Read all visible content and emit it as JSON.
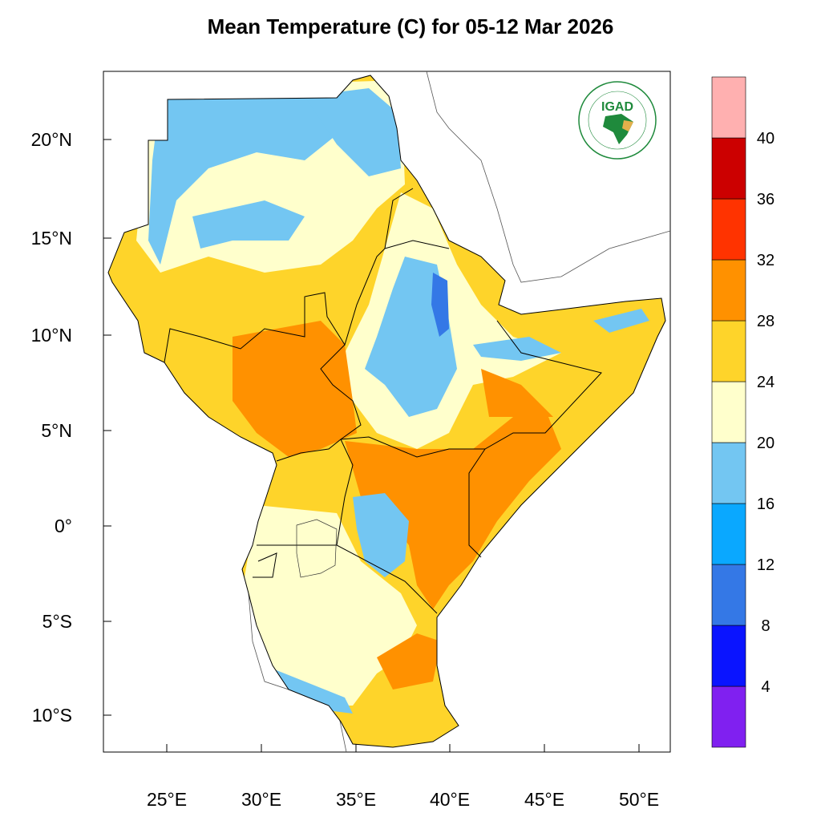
{
  "title": "Mean Temperature (C) for 05-12 Mar 2026",
  "map": {
    "lon_ticks": [
      "25°E",
      "30°E",
      "35°E",
      "40°E",
      "45°E",
      "50°E"
    ],
    "lat_ticks": [
      "20°N",
      "15°N",
      "10°N",
      "5°N",
      "0°",
      "5°S",
      "10°S"
    ],
    "lon_range": [
      21.65,
      51.65
    ],
    "lat_range": [
      -11.8,
      23.55
    ],
    "variable": "Mean Temperature (C)"
  },
  "colorbar": {
    "levels": [
      "4",
      "8",
      "12",
      "16",
      "20",
      "24",
      "28",
      "32",
      "36",
      "40"
    ],
    "colors": [
      "#8020f0",
      "#0a14ff",
      "#3478e6",
      "#0aa8ff",
      "#73c6f2",
      "#ffffcc",
      "#fed42a",
      "#ff9100",
      "#ff3300",
      "#cc0000",
      "#ffb0b0"
    ]
  },
  "logo": {
    "text": "IGAD",
    "ring_top": "INTERGOVERNMENTAL AUTHORITY ON DEVELOPMENT",
    "ring_bottom": "AUTORITE INTERGOUVERNEMENTALE POUR LE DEVELOPPEMENT",
    "color": "#1f8a3c"
  }
}
